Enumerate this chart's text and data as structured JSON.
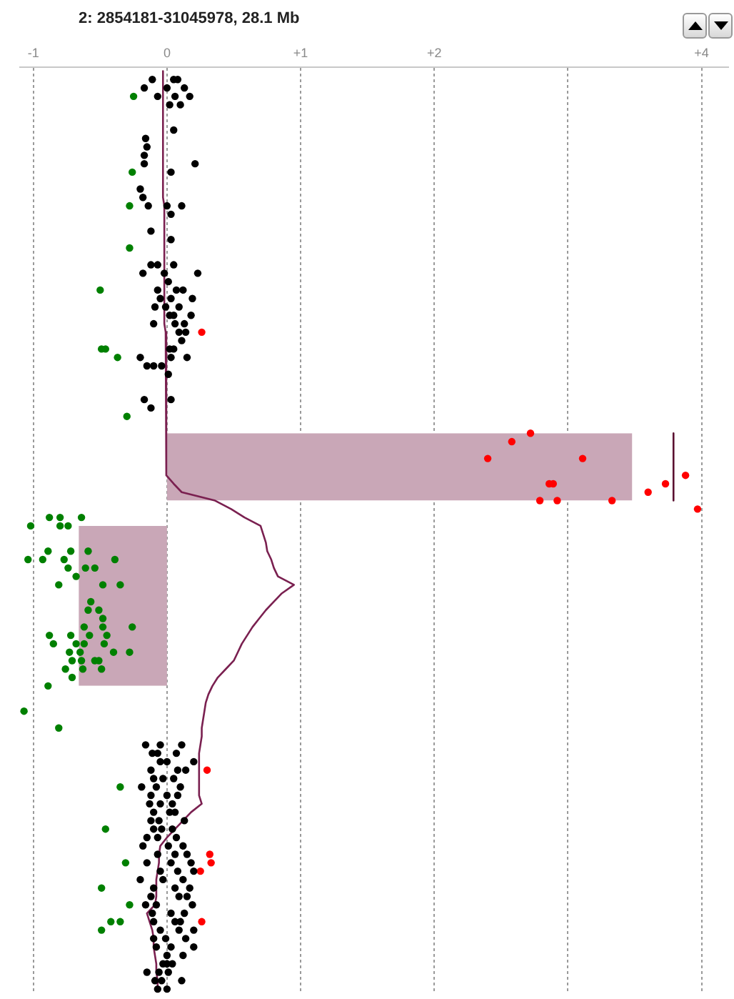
{
  "chart_data": {
    "type": "scatter",
    "title": "2: 2854181-31045978, 28.1 Mb",
    "orientation": "horizontal",
    "marker": "circle",
    "grid": "x",
    "tick_labels": "x",
    "categories": [
      null,
      null,
      null,
      null,
      null,
      null,
      null,
      null,
      null,
      null,
      null,
      null,
      null,
      null,
      null,
      null,
      null,
      null,
      null,
      null,
      null,
      null,
      null,
      null,
      null,
      null,
      null,
      null,
      null,
      null,
      null,
      null,
      null,
      null,
      null,
      null,
      null,
      null,
      null,
      null,
      null,
      null,
      null,
      null,
      null,
      null,
      null,
      null,
      null,
      null,
      null,
      null,
      null,
      null,
      null,
      null,
      null,
      null,
      null,
      null,
      null,
      null,
      null,
      null,
      null,
      null,
      null,
      null,
      null,
      null,
      null,
      null,
      null,
      null,
      null,
      null,
      null,
      null,
      null,
      null,
      null,
      null,
      null,
      null,
      null,
      null,
      null,
      null,
      null,
      null,
      null,
      null,
      null,
      null,
      null,
      null,
      null,
      null,
      null,
      null,
      null,
      null,
      null,
      null,
      null,
      null,
      null,
      null,
      null,
      null
    ],
    "xlim": [
      -1.1,
      4.2
    ],
    "xticks": [
      -1,
      0,
      {
        "value": 1,
        "label": "+1"
      },
      {
        "value": 2,
        "label": "+2"
      },
      {
        "value": 3,
        "label": null
      },
      {
        "value": 4,
        "label": "+4"
      }
    ],
    "series": [
      {
        "type": "area",
        "marker": "none",
        "color": "#c9a7b7",
        "values": [
          null,
          null,
          null,
          null,
          null,
          null,
          null,
          null,
          null,
          null,
          null,
          null,
          null,
          null,
          null,
          null,
          null,
          null,
          null,
          null,
          null,
          null,
          null,
          null,
          null,
          null,
          null,
          null,
          null,
          null,
          null,
          null,
          null,
          null,
          null,
          null,
          null,
          null,
          null,
          null,
          null,
          null,
          null,
          3.48,
          3.48,
          3.48,
          3.48,
          3.48,
          3.48,
          3.48,
          3.48,
          3.48,
          null,
          null,
          null,
          null,
          null,
          null,
          null,
          null,
          null,
          null,
          null,
          null,
          null,
          null,
          null,
          null,
          null,
          null,
          null,
          null,
          null,
          null,
          null,
          null,
          null,
          null,
          null,
          null,
          null,
          null,
          null,
          null,
          null,
          null,
          null,
          null,
          null,
          null,
          null,
          null,
          null,
          null,
          null,
          null,
          null,
          null,
          null,
          null,
          null,
          null,
          null,
          null,
          null,
          null,
          null,
          null,
          null,
          null
        ]
      },
      {
        "type": "area",
        "marker": "none",
        "color": "#c9a7b7",
        "values": [
          null,
          null,
          null,
          null,
          null,
          null,
          null,
          null,
          null,
          null,
          null,
          null,
          null,
          null,
          null,
          null,
          null,
          null,
          null,
          null,
          null,
          null,
          null,
          null,
          null,
          null,
          null,
          null,
          null,
          null,
          null,
          null,
          null,
          null,
          null,
          null,
          null,
          null,
          null,
          null,
          null,
          null,
          null,
          null,
          null,
          null,
          null,
          null,
          null,
          null,
          null,
          null,
          null,
          null,
          -0.66,
          -0.66,
          -0.66,
          -0.66,
          -0.66,
          -0.66,
          -0.66,
          -0.66,
          -0.66,
          -0.66,
          -0.66,
          -0.66,
          -0.66,
          -0.66,
          -0.66,
          -0.66,
          -0.66,
          -0.66,
          -0.66,
          -0.66,
          null,
          null,
          null,
          null,
          null,
          null,
          null,
          null,
          null,
          null,
          null,
          null,
          null,
          null,
          null,
          null,
          null,
          null,
          null,
          null,
          null,
          null,
          null,
          null,
          null,
          null,
          null,
          null,
          null,
          null,
          null,
          null,
          null,
          null,
          null,
          null
        ]
      },
      {
        "type": "line",
        "marker": "none",
        "color": "#7a2050",
        "values": [
          -0.03,
          -0.03,
          -0.03,
          -0.03,
          -0.03,
          -0.03,
          -0.03,
          -0.03,
          -0.03,
          -0.03,
          -0.03,
          -0.03,
          -0.03,
          -0.03,
          -0.03,
          -0.03,
          -0.02,
          -0.02,
          -0.02,
          -0.02,
          -0.02,
          -0.02,
          -0.02,
          -0.02,
          -0.02,
          -0.02,
          -0.02,
          -0.02,
          -0.02,
          -0.02,
          -0.02,
          -0.01,
          -0.01,
          -0.01,
          -0.01,
          -0.01,
          -0.01,
          -0.01,
          -0.01,
          -0.01,
          -0.01,
          0,
          0,
          0,
          0,
          0,
          0,
          0,
          0,
          0.05,
          0.11,
          0.36,
          0.48,
          0.58,
          0.7,
          0.72,
          0.74,
          0.75,
          0.78,
          0.8,
          0.83,
          0.95,
          0.86,
          0.8,
          0.74,
          0.69,
          0.64,
          0.6,
          0.56,
          0.53,
          0.5,
          0.44,
          0.38,
          0.34,
          0.31,
          0.29,
          0.28,
          0.27,
          0.26,
          0.26,
          0.25,
          0.24,
          0.24,
          0.24,
          0.24,
          0.24,
          0.24,
          0.26,
          0.18,
          0.12,
          0.06,
          0,
          -0.05,
          -0.06,
          -0.06,
          -0.07,
          -0.08,
          -0.08,
          -0.08,
          -0.09,
          -0.15,
          -0.13,
          -0.11,
          -0.1,
          -0.1,
          -0.09,
          -0.08,
          -0.08,
          -0.07,
          -0.07
        ]
      },
      {
        "type": "line",
        "marker": "none",
        "color": "#5a1030",
        "values": [
          null,
          null,
          null,
          null,
          null,
          null,
          null,
          null,
          null,
          null,
          null,
          null,
          null,
          null,
          null,
          null,
          null,
          null,
          null,
          null,
          null,
          null,
          null,
          null,
          null,
          null,
          null,
          null,
          null,
          null,
          null,
          null,
          null,
          null,
          null,
          null,
          null,
          null,
          null,
          null,
          null,
          null,
          null,
          3.79,
          3.79,
          3.79,
          3.79,
          3.79,
          3.79,
          3.79,
          3.79,
          3.79,
          null,
          null,
          null,
          null,
          null,
          null,
          null,
          null,
          null,
          null,
          null,
          null,
          null,
          null,
          null,
          null,
          null,
          null,
          null,
          null,
          null,
          null,
          null,
          null,
          null,
          null,
          null,
          null,
          null,
          null,
          null,
          null,
          null,
          null,
          null,
          null,
          null,
          null,
          null,
          null,
          null,
          null,
          null,
          null,
          null,
          null,
          null,
          null,
          null,
          null,
          null,
          null,
          null,
          null,
          null,
          null,
          null,
          null
        ]
      },
      {
        "color": "#000000",
        "values": [
          null,
          -0.11,
          -0.17,
          -0.07,
          0.02,
          null,
          null,
          0.05,
          -0.16,
          -0.15,
          -0.17,
          -0.17,
          0.03,
          null,
          -0.2,
          -0.18,
          -0.14,
          0.03,
          null,
          -0.12,
          0.03,
          null,
          null,
          -0.12,
          -0.18,
          0.01,
          -0.07,
          -0.05,
          -0.09,
          0.02,
          -0.1,
          0.09,
          0.11,
          0.02,
          -0.2,
          -0.15,
          0.01,
          null,
          null,
          -0.17,
          -0.12,
          null,
          null,
          null,
          null,
          null,
          null,
          null,
          null,
          null,
          null,
          null,
          null,
          null,
          null,
          null,
          null,
          null,
          null,
          null,
          null,
          null,
          null,
          null,
          null,
          null,
          null,
          null,
          null,
          null,
          null,
          null,
          null,
          null,
          null,
          null,
          null,
          null,
          null,
          null,
          -0.16,
          -0.11,
          -0.05,
          -0.12,
          -0.1,
          -0.19,
          -0.12,
          -0.13,
          -0.1,
          -0.12,
          -0.1,
          -0.15,
          -0.18,
          -0.07,
          -0.15,
          -0.05,
          -0.2,
          -0.1,
          -0.12,
          -0.16,
          -0.11,
          -0.1,
          -0.05,
          -0.1,
          -0.08,
          0,
          -0.03,
          -0.15,
          -0.09,
          -0.07
        ]
      },
      {
        "color": "#000000",
        "values": [
          null,
          0.05,
          0,
          0.06,
          0.1,
          null,
          null,
          null,
          null,
          null,
          null,
          0.21,
          null,
          null,
          null,
          null,
          0,
          null,
          null,
          null,
          null,
          null,
          null,
          -0.07,
          -0.02,
          null,
          0.07,
          0.03,
          -0.01,
          0.05,
          0.06,
          0.14,
          null,
          0.05,
          0.03,
          -0.1,
          null,
          null,
          null,
          0.03,
          null,
          null,
          null,
          null,
          null,
          null,
          null,
          null,
          null,
          null,
          null,
          null,
          null,
          null,
          null,
          null,
          null,
          null,
          null,
          null,
          null,
          null,
          null,
          null,
          null,
          null,
          null,
          null,
          null,
          null,
          null,
          null,
          null,
          null,
          null,
          null,
          null,
          null,
          null,
          null,
          -0.05,
          -0.07,
          0,
          0.08,
          -0.03,
          -0.08,
          0,
          -0.05,
          0.02,
          -0.06,
          -0.04,
          -0.07,
          0.01,
          0.06,
          0.03,
          0.08,
          -0.03,
          0.06,
          0.09,
          -0.08,
          0.03,
          0.06,
          0.09,
          -0.01,
          0.03,
          0.12,
          0,
          -0.06,
          -0.04,
          0
        ]
      },
      {
        "color": "#000000",
        "values": [
          null,
          0.08,
          0.13,
          0.17,
          null,
          null,
          null,
          null,
          null,
          null,
          null,
          null,
          null,
          null,
          null,
          null,
          0.11,
          null,
          null,
          null,
          null,
          null,
          null,
          0.05,
          0.23,
          null,
          0.12,
          0.19,
          0.09,
          0.18,
          0.13,
          null,
          null,
          null,
          0.15,
          -0.04,
          null,
          null,
          null,
          null,
          null,
          null,
          null,
          null,
          null,
          null,
          null,
          null,
          null,
          null,
          null,
          null,
          null,
          null,
          null,
          null,
          null,
          null,
          null,
          null,
          null,
          null,
          null,
          null,
          null,
          null,
          null,
          null,
          null,
          null,
          null,
          null,
          null,
          null,
          null,
          null,
          null,
          null,
          null,
          null,
          0.11,
          0.07,
          0.2,
          0.14,
          0.05,
          0.1,
          0.08,
          0.04,
          0.06,
          0.13,
          0.04,
          0.07,
          0.12,
          0.15,
          0.18,
          0.2,
          0.12,
          0.17,
          0.15,
          0.19,
          0.13,
          0.1,
          0.2,
          0.14,
          0.2,
          null,
          0.04,
          0.01,
          0.11,
          null
        ]
      },
      {
        "color": "#008000",
        "values": [
          null,
          null,
          null,
          -0.25,
          null,
          null,
          null,
          null,
          null,
          null,
          null,
          null,
          -0.26,
          null,
          null,
          null,
          -0.28,
          null,
          null,
          null,
          null,
          -0.28,
          null,
          null,
          null,
          null,
          -0.5,
          null,
          null,
          null,
          null,
          null,
          null,
          -0.49,
          -0.37,
          null,
          null,
          null,
          null,
          null,
          null,
          -0.3,
          null,
          null,
          null,
          null,
          null,
          null,
          null,
          null,
          null,
          null,
          null,
          -0.88,
          -1.02,
          null,
          null,
          -0.89,
          -1.04,
          -0.74,
          -0.68,
          -0.81,
          null,
          -0.57,
          -0.59,
          -0.48,
          -0.62,
          -0.88,
          -0.85,
          -0.73,
          -0.71,
          -0.76,
          -0.71,
          -0.89,
          null,
          null,
          -1.07,
          null,
          -0.81,
          null,
          null,
          null,
          null,
          null,
          null,
          -0.35,
          null,
          null,
          null,
          null,
          -0.46,
          null,
          null,
          null,
          -0.31,
          null,
          null,
          -0.49,
          null,
          -0.28,
          null,
          -0.42,
          -0.49,
          null,
          null,
          null,
          null,
          null,
          null,
          null
        ]
      },
      {
        "color": "#008000",
        "values": [
          null,
          null,
          null,
          null,
          null,
          null,
          null,
          null,
          null,
          null,
          null,
          null,
          null,
          null,
          null,
          null,
          null,
          null,
          null,
          null,
          null,
          null,
          null,
          null,
          null,
          null,
          null,
          null,
          null,
          null,
          null,
          null,
          null,
          -0.46,
          null,
          null,
          null,
          null,
          null,
          null,
          null,
          null,
          null,
          null,
          null,
          null,
          null,
          null,
          null,
          null,
          null,
          null,
          null,
          -0.8,
          -0.74,
          null,
          null,
          -0.72,
          -0.93,
          -0.54,
          null,
          -0.48,
          null,
          null,
          -0.51,
          null,
          -0.48,
          -0.72,
          -0.68,
          -0.28,
          -0.54,
          -0.49,
          null,
          null,
          null,
          null,
          null,
          null,
          null,
          null,
          null,
          null,
          null,
          null,
          null,
          null,
          null,
          null,
          null,
          null,
          null,
          null,
          null,
          null,
          null,
          null,
          null,
          null,
          null,
          null,
          null,
          -0.35,
          null,
          null,
          null,
          null,
          null,
          null,
          null,
          null
        ]
      },
      {
        "color": "#008000",
        "values": [
          null,
          null,
          null,
          null,
          null,
          null,
          null,
          null,
          null,
          null,
          null,
          null,
          null,
          null,
          null,
          null,
          null,
          null,
          null,
          null,
          null,
          null,
          null,
          null,
          null,
          null,
          null,
          null,
          null,
          null,
          null,
          null,
          null,
          null,
          null,
          null,
          null,
          null,
          null,
          null,
          null,
          null,
          null,
          null,
          null,
          null,
          null,
          null,
          null,
          null,
          null,
          null,
          null,
          -0.64,
          -0.8,
          null,
          null,
          -0.59,
          -0.77,
          -0.61,
          null,
          -0.35,
          null,
          null,
          null,
          null,
          -0.26,
          -0.58,
          -0.62,
          -0.65,
          -0.64,
          -0.63,
          null,
          null,
          null,
          null,
          null,
          null,
          null,
          null,
          null,
          null,
          null,
          null,
          null,
          null,
          null,
          null,
          null,
          null,
          null,
          null,
          null,
          null,
          null,
          null,
          null,
          null,
          null,
          null,
          null,
          null,
          null,
          null,
          null,
          null,
          null,
          null,
          null,
          null
        ]
      },
      {
        "color": "#008000",
        "values": [
          null,
          null,
          null,
          null,
          null,
          null,
          null,
          null,
          null,
          null,
          null,
          null,
          null,
          null,
          null,
          null,
          null,
          null,
          null,
          null,
          null,
          null,
          null,
          null,
          null,
          null,
          null,
          null,
          null,
          null,
          null,
          null,
          null,
          null,
          null,
          null,
          null,
          null,
          null,
          null,
          null,
          null,
          null,
          null,
          null,
          null,
          null,
          null,
          null,
          null,
          null,
          null,
          null,
          null,
          null,
          null,
          null,
          null,
          -0.39,
          null,
          null,
          null,
          null,
          null,
          null,
          null,
          null,
          -0.45,
          -0.47,
          -0.4,
          -0.51,
          null,
          null,
          null,
          null,
          null,
          null,
          null,
          null,
          null,
          null,
          null,
          null,
          null,
          null,
          null,
          null,
          null,
          null,
          null,
          null,
          null,
          null,
          null,
          null,
          null,
          null,
          null,
          null,
          null,
          null,
          null,
          null,
          null,
          null,
          null,
          null,
          null,
          null,
          null
        ]
      },
      {
        "color": "#ff0000",
        "values": [
          null,
          null,
          null,
          null,
          null,
          null,
          null,
          null,
          null,
          null,
          null,
          null,
          null,
          null,
          null,
          null,
          null,
          null,
          null,
          null,
          null,
          null,
          null,
          null,
          null,
          null,
          null,
          null,
          null,
          null,
          null,
          0.26,
          null,
          null,
          null,
          null,
          null,
          null,
          null,
          null,
          null,
          null,
          null,
          2.72,
          2.58,
          null,
          2.4,
          null,
          3.88,
          2.86,
          3.6,
          2.92,
          3.97,
          null,
          null,
          null,
          null,
          null,
          null,
          null,
          null,
          null,
          null,
          null,
          null,
          null,
          null,
          null,
          null,
          null,
          null,
          null,
          null,
          null,
          null,
          null,
          null,
          null,
          null,
          null,
          null,
          null,
          null,
          0.3,
          null,
          null,
          null,
          null,
          null,
          null,
          null,
          null,
          null,
          0.32,
          0.33,
          0.25,
          null,
          null,
          null,
          null,
          null,
          0.26,
          null,
          null,
          null,
          null,
          null,
          null,
          null,
          null
        ]
      },
      {
        "color": "#ff0000",
        "values": [
          null,
          null,
          null,
          null,
          null,
          null,
          null,
          null,
          null,
          null,
          null,
          null,
          null,
          null,
          null,
          null,
          null,
          null,
          null,
          null,
          null,
          null,
          null,
          null,
          null,
          null,
          null,
          null,
          null,
          null,
          null,
          null,
          null,
          null,
          null,
          null,
          null,
          null,
          null,
          null,
          null,
          null,
          null,
          null,
          null,
          null,
          3.11,
          null,
          null,
          3.73,
          null,
          3.33,
          null,
          null,
          null,
          null,
          null,
          null,
          null,
          null,
          null,
          null,
          null,
          null,
          null,
          null,
          null,
          null,
          null,
          null,
          null,
          null,
          null,
          null,
          null,
          null,
          null,
          null,
          null,
          null,
          null,
          null,
          null,
          null,
          null,
          null,
          null,
          null,
          null,
          null,
          null,
          null,
          null,
          null,
          null,
          null,
          null,
          null,
          null,
          null,
          null,
          null,
          null,
          null,
          null,
          null,
          null,
          null,
          null,
          null
        ]
      },
      {
        "color": "#ff0000",
        "values": [
          null,
          null,
          null,
          null,
          null,
          null,
          null,
          null,
          null,
          null,
          null,
          null,
          null,
          null,
          null,
          null,
          null,
          null,
          null,
          null,
          null,
          null,
          null,
          null,
          null,
          null,
          null,
          null,
          null,
          null,
          null,
          null,
          null,
          null,
          null,
          null,
          null,
          null,
          null,
          null,
          null,
          null,
          null,
          null,
          null,
          null,
          null,
          null,
          null,
          2.89,
          null,
          2.79,
          null,
          null,
          null,
          null,
          null,
          null,
          null,
          null,
          null,
          null,
          null,
          null,
          null,
          null,
          null,
          null,
          null,
          null,
          null,
          null,
          null,
          null,
          null,
          null,
          null,
          null,
          null,
          null,
          null,
          null,
          null,
          null,
          null,
          null,
          null,
          null,
          null,
          null,
          null,
          null,
          null,
          null,
          null,
          null,
          null,
          null,
          null,
          null,
          null,
          null,
          null,
          null,
          null,
          null,
          null,
          null,
          null,
          null
        ]
      }
    ]
  }
}
